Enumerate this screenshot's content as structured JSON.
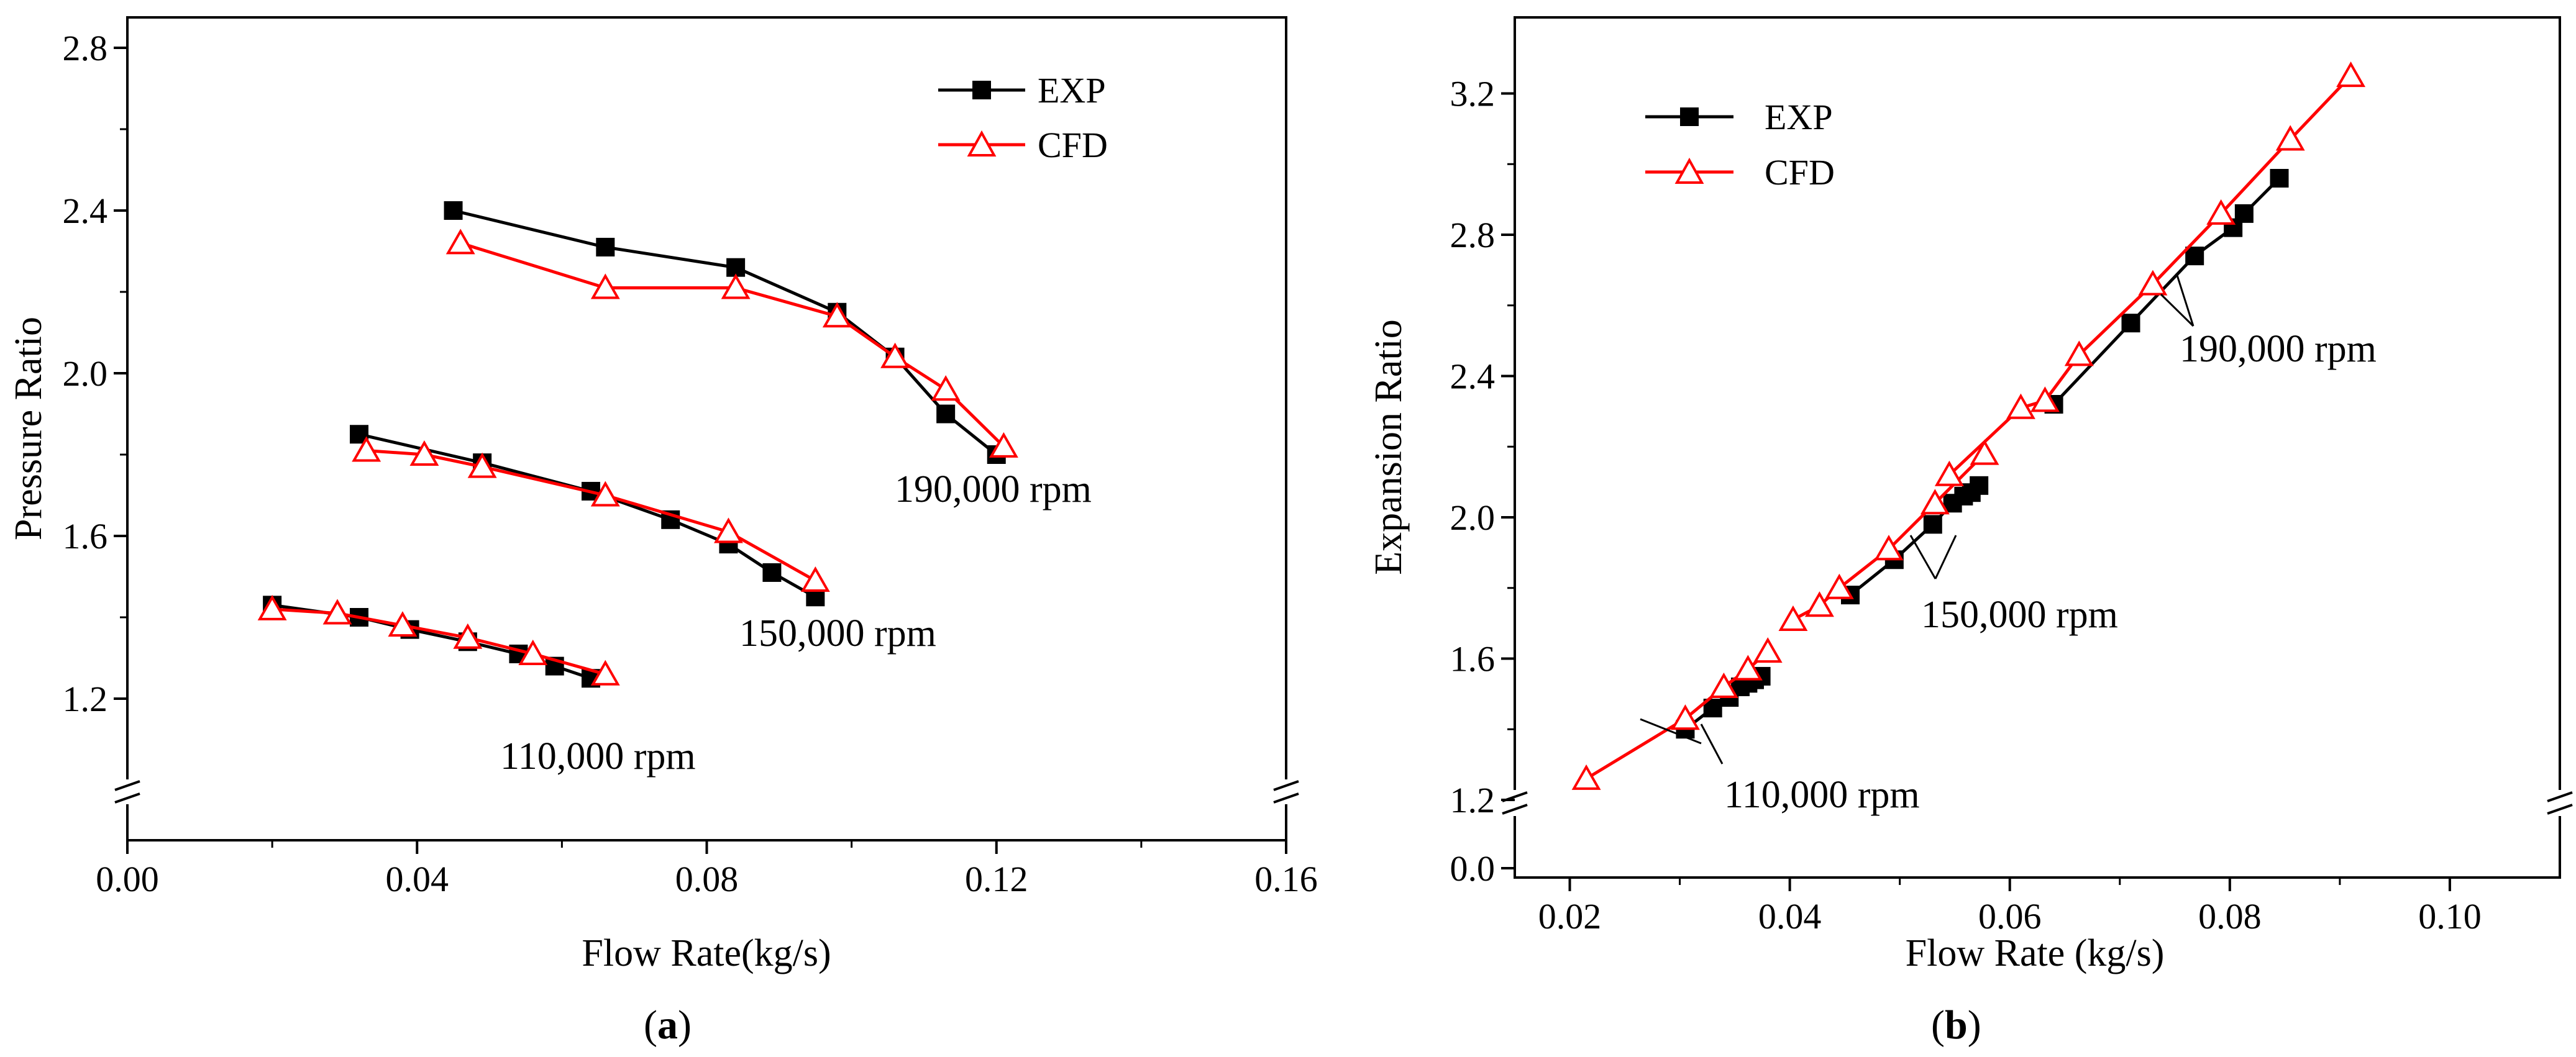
{
  "colors": {
    "exp": "#000000",
    "cfd": "#ff0000",
    "axis": "#000000"
  },
  "chart_data": [
    {
      "panel": "(a)",
      "panel_letter": "a",
      "type": "line",
      "xlabel": "Flow Rate(kg/s)",
      "ylabel": "Pressure Ratio",
      "xlim": [
        0.0,
        0.16
      ],
      "ylim_upper": [
        1.0,
        2.8
      ],
      "y_axis_break": true,
      "x_ticks": [
        "0.00",
        "0.04",
        "0.08",
        "0.12",
        "0.16"
      ],
      "y_ticks": [
        "1.2",
        "1.6",
        "2.0",
        "2.4",
        "2.8"
      ],
      "legend": {
        "position": "top-right",
        "entries": [
          "EXP",
          "CFD"
        ]
      },
      "series": [
        {
          "name": "EXP",
          "group": "110,000 rpm",
          "marker": "filled-square",
          "x": [
            0.02,
            0.032,
            0.039,
            0.047,
            0.054,
            0.059,
            0.064
          ],
          "y": [
            1.43,
            1.4,
            1.37,
            1.34,
            1.31,
            1.28,
            1.25
          ]
        },
        {
          "name": "CFD",
          "group": "110,000 rpm",
          "marker": "open-triangle",
          "x": [
            0.02,
            0.029,
            0.038,
            0.047,
            0.056,
            0.066
          ],
          "y": [
            1.42,
            1.41,
            1.38,
            1.35,
            1.31,
            1.26
          ]
        },
        {
          "name": "EXP",
          "group": "150,000 rpm",
          "marker": "filled-square",
          "x": [
            0.032,
            0.049,
            0.064,
            0.075,
            0.083,
            0.089,
            0.095
          ],
          "y": [
            1.85,
            1.78,
            1.71,
            1.64,
            1.58,
            1.51,
            1.45
          ]
        },
        {
          "name": "CFD",
          "group": "150,000 rpm",
          "marker": "open-triangle",
          "x": [
            0.033,
            0.041,
            0.049,
            0.066,
            0.083,
            0.095
          ],
          "y": [
            1.81,
            1.8,
            1.77,
            1.7,
            1.61,
            1.49
          ]
        },
        {
          "name": "EXP",
          "group": "190,000 rpm",
          "marker": "filled-square",
          "x": [
            0.045,
            0.066,
            0.084,
            0.098,
            0.106,
            0.113,
            0.12
          ],
          "y": [
            2.4,
            2.31,
            2.26,
            2.15,
            2.04,
            1.9,
            1.8
          ]
        },
        {
          "name": "CFD",
          "group": "190,000 rpm",
          "marker": "open-triangle",
          "x": [
            0.046,
            0.066,
            0.084,
            0.098,
            0.106,
            0.113,
            0.121
          ],
          "y": [
            2.32,
            2.21,
            2.21,
            2.14,
            2.04,
            1.96,
            1.82
          ]
        }
      ],
      "annotations": [
        "110,000 rpm",
        "150,000 rpm",
        "190,000 rpm"
      ]
    },
    {
      "panel": "(b)",
      "panel_letter": "b",
      "type": "line",
      "xlabel": "Flow Rate (kg/s)",
      "ylabel": "Expansion Ratio",
      "xlim": [
        0.015,
        0.11
      ],
      "ylim_upper": [
        1.2,
        3.4
      ],
      "y_axis_break": true,
      "x_ticks": [
        "0.02",
        "0.04",
        "0.06",
        "0.08",
        "0.10"
      ],
      "y_ticks": [
        "0.0",
        "1.2",
        "1.6",
        "2.0",
        "2.4",
        "2.8",
        "3.2"
      ],
      "legend": {
        "position": "top-left",
        "entries": [
          "EXP",
          "CFD"
        ]
      },
      "series": [
        {
          "name": "EXP",
          "group": "110,000 rpm",
          "marker": "filled-square",
          "x": [
            0.0305,
            0.033,
            0.0345,
            0.0355,
            0.0362,
            0.0368,
            0.0374
          ],
          "y": [
            1.4,
            1.46,
            1.49,
            1.52,
            1.53,
            1.54,
            1.55
          ]
        },
        {
          "name": "CFD",
          "group": "110,000 rpm",
          "marker": "open-triangle",
          "x": [
            0.0215,
            0.0305,
            0.034,
            0.0362,
            0.038
          ],
          "y": [
            1.26,
            1.43,
            1.52,
            1.57,
            1.62
          ]
        },
        {
          "name": "EXP",
          "group": "150,000 rpm",
          "marker": "filled-square",
          "x": [
            0.0455,
            0.0495,
            0.053,
            0.0548,
            0.0558,
            0.0565,
            0.0572
          ],
          "y": [
            1.78,
            1.88,
            1.98,
            2.04,
            2.06,
            2.07,
            2.09
          ]
        },
        {
          "name": "CFD",
          "group": "150,000 rpm",
          "marker": "open-triangle",
          "x": [
            0.0403,
            0.0427,
            0.0445,
            0.049,
            0.0532,
            0.0577
          ],
          "y": [
            1.71,
            1.75,
            1.8,
            1.91,
            2.04,
            2.18
          ]
        },
        {
          "name": "EXP",
          "group": "190,000 rpm",
          "marker": "filled-square",
          "x": [
            0.064,
            0.071,
            0.0768,
            0.0803,
            0.0813,
            0.0845
          ],
          "y": [
            2.32,
            2.55,
            2.74,
            2.82,
            2.86,
            2.96
          ]
        },
        {
          "name": "CFD",
          "group": "190,000 rpm",
          "marker": "open-triangle",
          "x": [
            0.0545,
            0.061,
            0.0632,
            0.0663,
            0.073,
            0.0792,
            0.0855,
            0.091
          ],
          "y": [
            2.12,
            2.31,
            2.33,
            2.46,
            2.66,
            2.86,
            3.07,
            3.25
          ]
        }
      ],
      "annotations": [
        "110,000 rpm",
        "150,000 rpm",
        "190,000 rpm"
      ]
    }
  ]
}
